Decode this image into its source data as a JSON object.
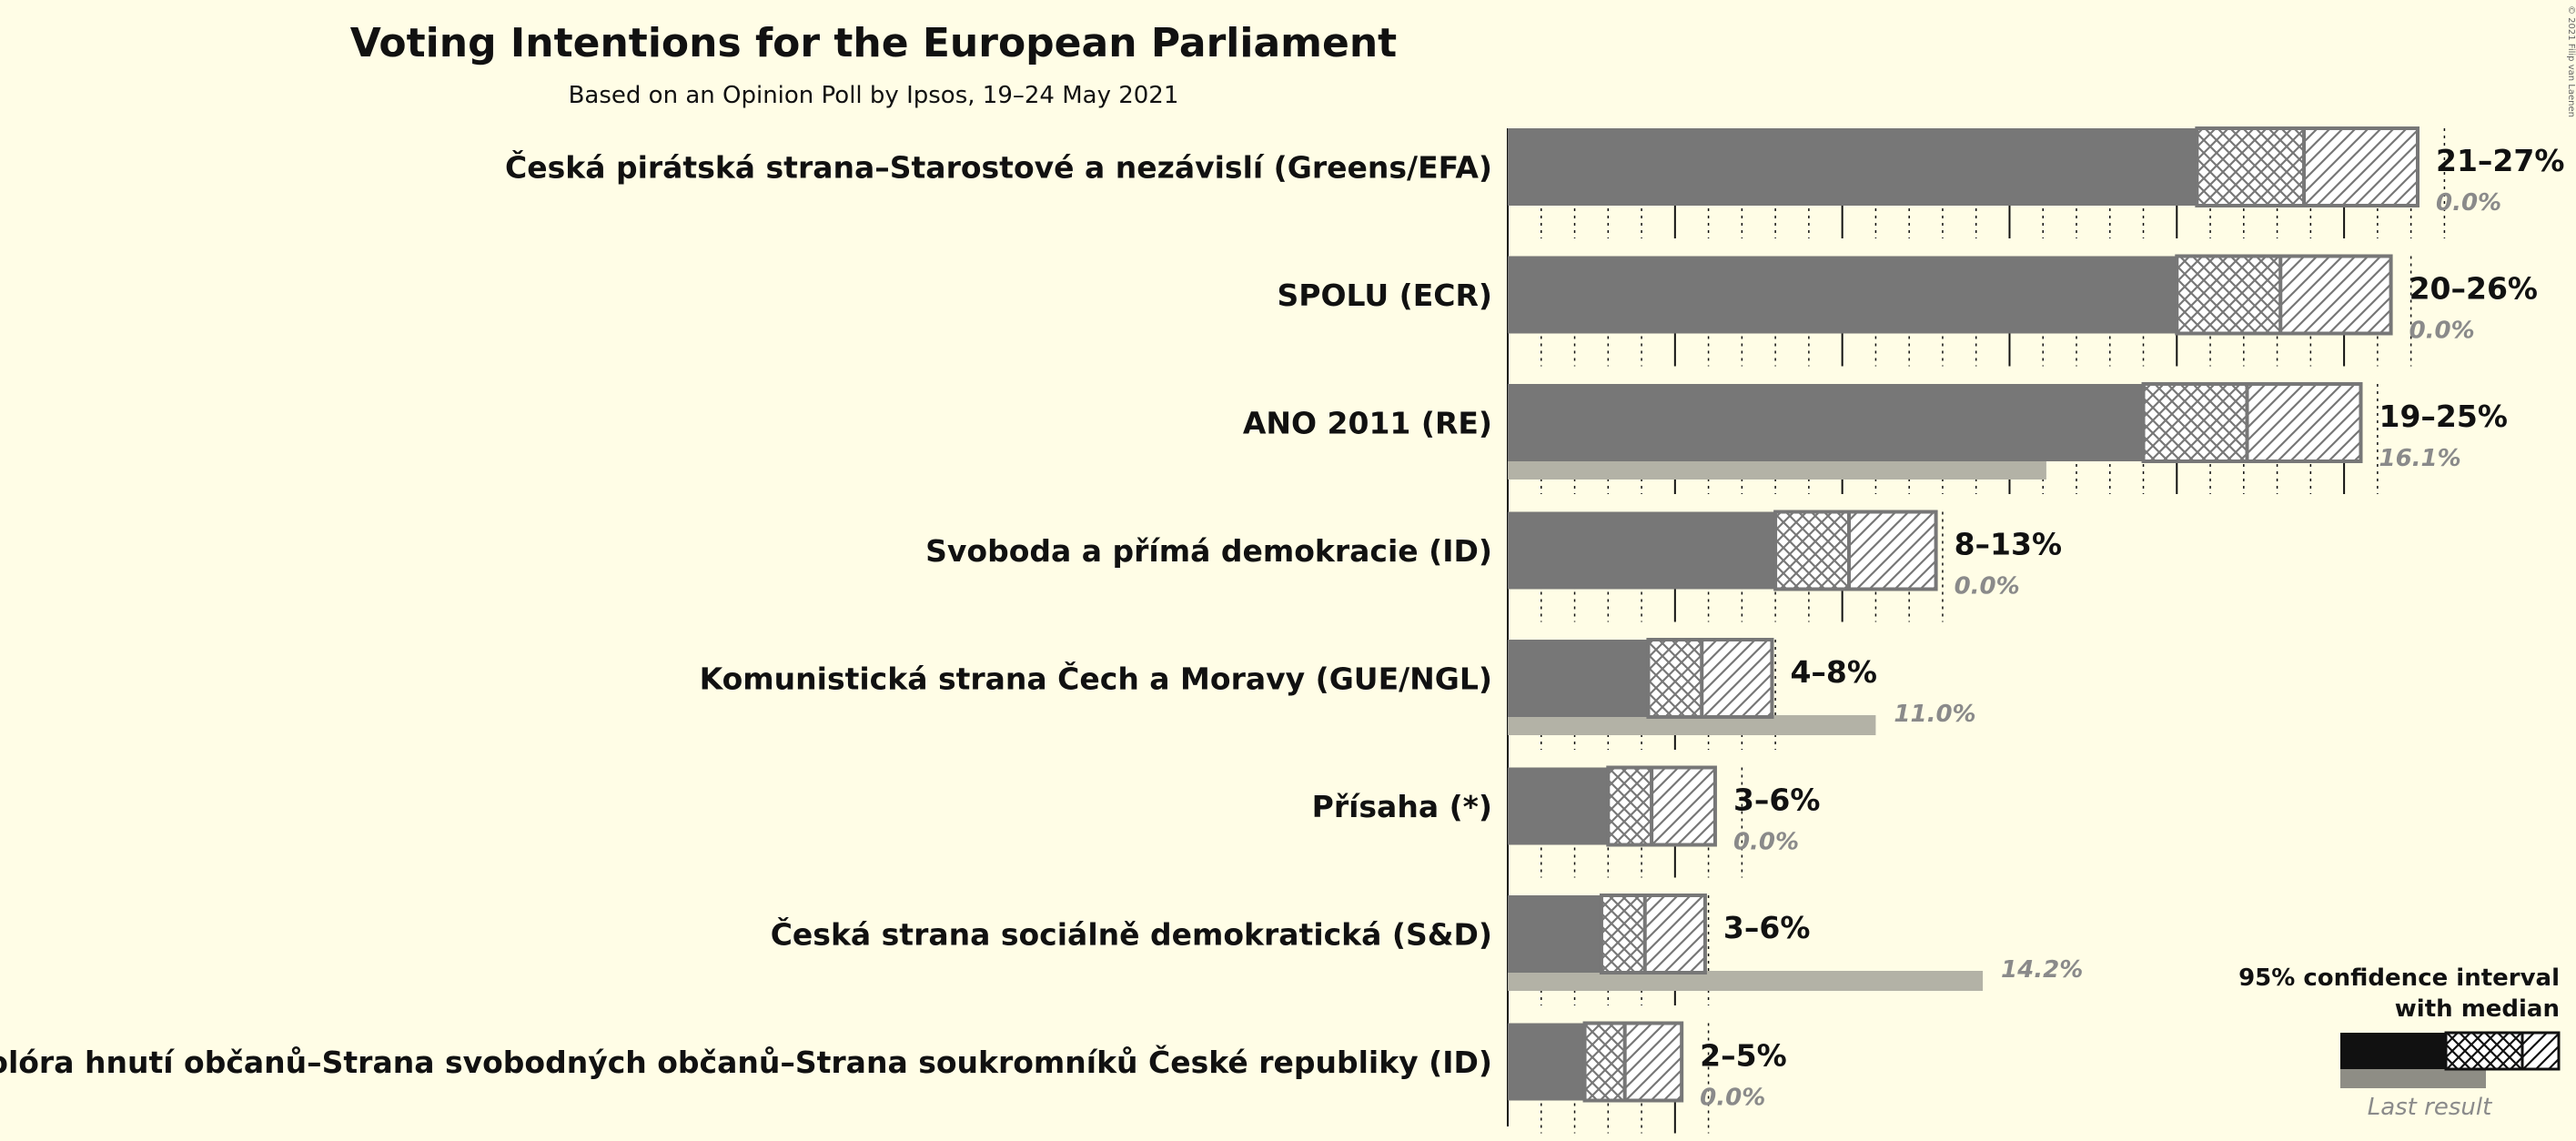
{
  "chart_data": {
    "type": "bar",
    "orientation": "horizontal",
    "title": "Voting Intentions for the European Parliament",
    "subtitle": "Based on an Opinion Poll by Ipsos, 19–24 May 2021",
    "copyright": "© 2021 Filip van Laenen",
    "legend": {
      "title_line1": "95% confidence interval",
      "title_line2": "with median",
      "last_result_label": "Last result",
      "position": "bottom-right"
    },
    "colors": {
      "background": "#fffde6",
      "bar": "#777777",
      "interval_border": "#777777",
      "last_result": "#b3b2a6",
      "legend_bar": "#111111"
    },
    "series": [
      {
        "party": "Česká pirátská strana–Starostové a nezávislí (Greens/EFA)",
        "low": 20.6,
        "median": 23.8,
        "high": 27.2,
        "range_label": "21–27%",
        "last": 0.0,
        "last_label": "0.0%"
      },
      {
        "party": "SPOLU (ECR)",
        "low": 20.0,
        "median": 23.1,
        "high": 26.4,
        "range_label": "20–26%",
        "last": 0.0,
        "last_label": "0.0%"
      },
      {
        "party": "ANO 2011 (RE)",
        "low": 19.0,
        "median": 22.1,
        "high": 25.5,
        "range_label": "19–25%",
        "last": 16.1,
        "last_label": "16.1%"
      },
      {
        "party": "Svoboda a přímá demokracie (ID)",
        "low": 8.0,
        "median": 10.2,
        "high": 12.8,
        "range_label": "8–13%",
        "last": 0.0,
        "last_label": "0.0%"
      },
      {
        "party": "Komunistická strana Čech a Moravy (GUE/NGL)",
        "low": 4.2,
        "median": 5.8,
        "high": 7.9,
        "range_label": "4–8%",
        "last": 11.0,
        "last_label": "11.0%"
      },
      {
        "party": "Přísaha (*)",
        "low": 3.0,
        "median": 4.3,
        "high": 6.2,
        "range_label": "3–6%",
        "last": 0.0,
        "last_label": "0.0%"
      },
      {
        "party": "Česká strana sociálně demokratická (S&D)",
        "low": 2.8,
        "median": 4.1,
        "high": 5.9,
        "range_label": "3–6%",
        "last": 14.2,
        "last_label": "14.2%"
      },
      {
        "party": "Trikolóra hnutí občanů–Strana svobodných občanů–Strana soukromníků České republiky (ID)",
        "low": 2.3,
        "median": 3.5,
        "high": 5.2,
        "range_label": "2–5%",
        "last": 0.0,
        "last_label": "0.0%"
      }
    ],
    "x_range": [
      0,
      27.2
    ],
    "grid": "vertical lines every 1%, solid every 5%",
    "axis_labels": "none"
  }
}
